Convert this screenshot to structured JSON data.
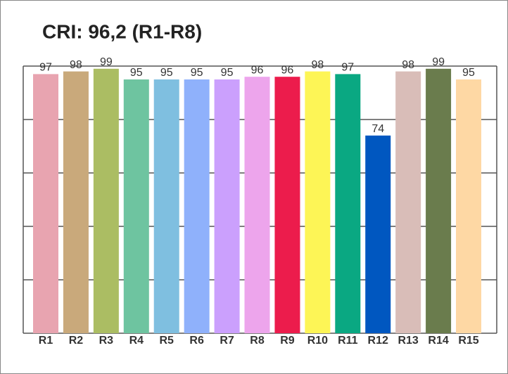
{
  "chart_data": {
    "type": "bar",
    "title": "CRI: 96,2 (R1-R8)",
    "categories": [
      "R1",
      "R2",
      "R3",
      "R4",
      "R5",
      "R6",
      "R7",
      "R8",
      "R9",
      "R10",
      "R11",
      "R12",
      "R13",
      "R14",
      "R15"
    ],
    "values": [
      97,
      98,
      99,
      95,
      95,
      95,
      95,
      96,
      96,
      98,
      97,
      74,
      98,
      99,
      95
    ],
    "colors": [
      "#e8a4b0",
      "#c9a97b",
      "#abbd63",
      "#6ec4a0",
      "#7fbfe0",
      "#8fb1fb",
      "#cba0fd",
      "#eda5ec",
      "#ec1c4c",
      "#fdf556",
      "#0aa882",
      "#0057c0",
      "#d9bdb8",
      "#6a7c4d",
      "#fed8a4"
    ],
    "ylim": [
      0,
      100
    ],
    "yticks": [
      0,
      20,
      40,
      60,
      80,
      100
    ],
    "grid": true
  }
}
